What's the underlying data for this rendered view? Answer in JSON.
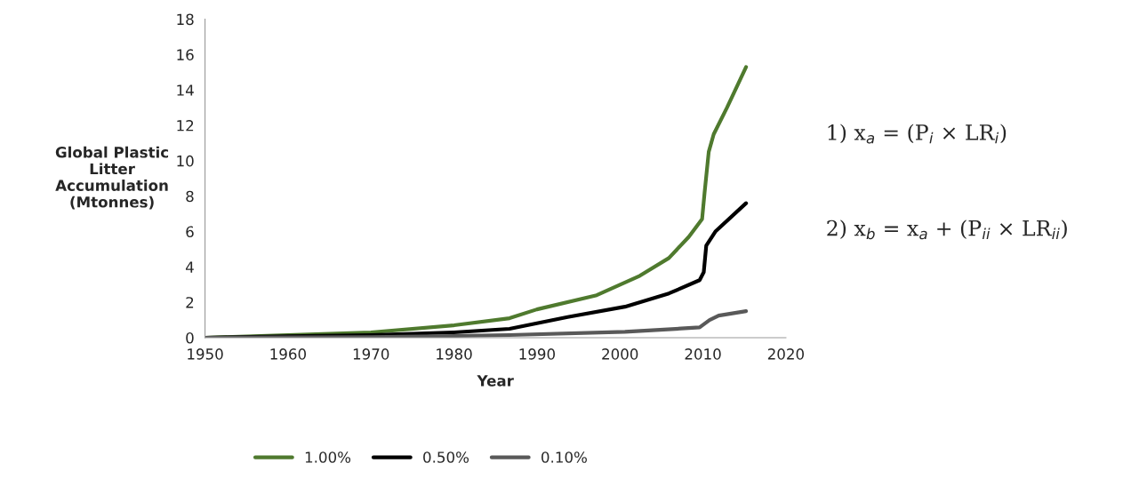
{
  "chart_data": {
    "type": "line",
    "xlabel": "Year",
    "ylabel": "Global Plastic\nLitter\nAccumulation\n(Mtonnes)",
    "xlim": [
      1950,
      2020
    ],
    "xticks": [
      1950,
      1960,
      1970,
      1980,
      1990,
      2000,
      2010,
      2020
    ],
    "ylim": [
      0,
      18
    ],
    "yticks": [
      0,
      2,
      4,
      6,
      8,
      10,
      12,
      14,
      16,
      18
    ],
    "grid": false,
    "legend": "bottom",
    "marker": "none",
    "line_style": "solid",
    "series": [
      {
        "name": "1.00%",
        "color": "#4f7a2e",
        "x": [
          1950,
          1960,
          1970,
          1980,
          1986.7,
          1990,
          1997.2,
          2002.4,
          2005.9,
          2008.3,
          2009.9,
          2010.2,
          2010.7,
          2011.3,
          2012.9,
          2015.2
        ],
        "values": [
          0,
          0.15,
          0.3,
          0.7,
          1.1,
          1.6,
          2.4,
          3.5,
          4.5,
          5.7,
          6.7,
          8.2,
          10.5,
          11.5,
          13,
          15.3
        ]
      },
      {
        "name": "0.50%",
        "color": "#000000",
        "x": [
          1950,
          1960,
          1970,
          1980,
          1986.7,
          1993.7,
          2000.6,
          2005.9,
          2009.6,
          2010.1,
          2010.4,
          2011.5,
          2015.2
        ],
        "values": [
          0,
          0.08,
          0.15,
          0.3,
          0.5,
          1.17,
          1.75,
          2.5,
          3.25,
          3.7,
          5.2,
          6.0,
          7.6
        ]
      },
      {
        "name": "0.10%",
        "color": "#595959",
        "x": [
          1950,
          1970,
          1986.7,
          2000.6,
          2009.6,
          2010.8,
          2011.9,
          2015.2
        ],
        "values": [
          0,
          0.03,
          0.15,
          0.33,
          0.58,
          1.0,
          1.25,
          1.5
        ]
      }
    ],
    "annotations": [
      "1) x$_{a}$ = (P$_{i}$ × LR$_{i}$)",
      "2) x$_{b}$ = x$_{a}$ + (P$_{ii}$ × LR$_{ii}$)"
    ]
  }
}
